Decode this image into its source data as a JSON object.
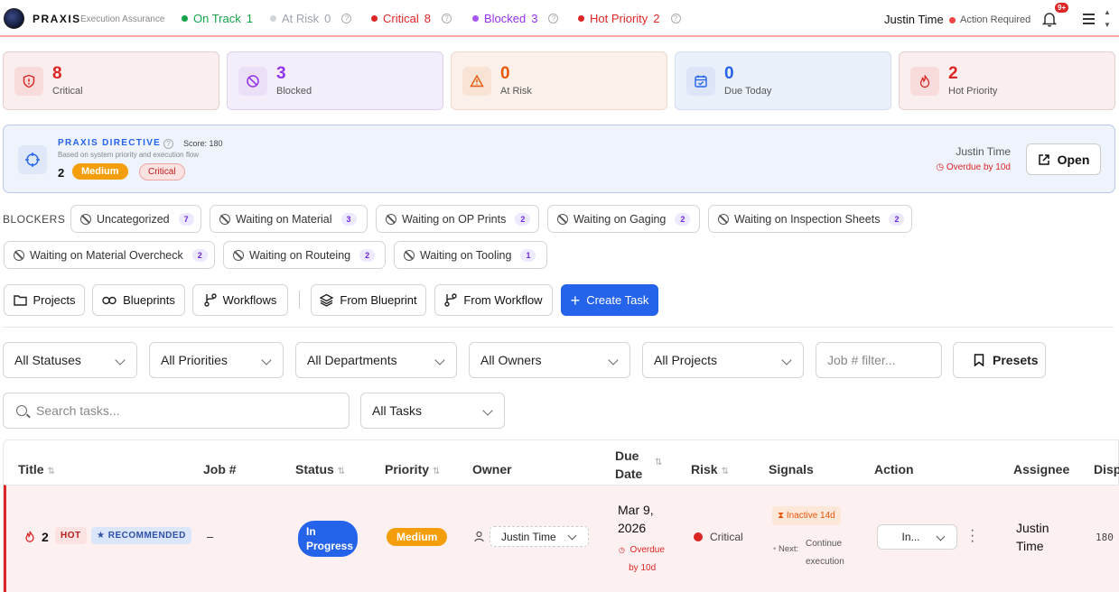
{
  "header": {
    "brand": "PRAXIS",
    "brand_sub": "Execution Assurance",
    "stats": [
      {
        "label": "On Track",
        "count": "1",
        "color": "#16a34a"
      },
      {
        "label": "At Risk",
        "count": "0",
        "color": "#9ca3af"
      },
      {
        "label": "Critical",
        "count": "8",
        "color": "#dc2626"
      },
      {
        "label": "Blocked",
        "count": "3",
        "color": "#9333ea"
      },
      {
        "label": "Hot Priority",
        "count": "2",
        "color": "#dc2626"
      }
    ],
    "user": "Justin Time",
    "action_required": "Action Required",
    "notifications": "9+"
  },
  "cards": [
    {
      "value": "8",
      "label": "Critical",
      "color": "#dc2626",
      "icon": "shield-alert-icon"
    },
    {
      "value": "3",
      "label": "Blocked",
      "color": "#9333ea",
      "icon": "ban-icon"
    },
    {
      "value": "0",
      "label": "At Risk",
      "color": "#ea580c",
      "icon": "warning-icon"
    },
    {
      "value": "0",
      "label": "Due Today",
      "color": "#2563eb",
      "icon": "calendar-check-icon"
    },
    {
      "value": "2",
      "label": "Hot Priority",
      "color": "#dc2626",
      "icon": "flame-icon"
    }
  ],
  "directive": {
    "title": "PRAXIS DIRECTIVE",
    "score": "Score: 180",
    "subtitle": "Based on system priority and execution flow",
    "number": "2",
    "priority": "Medium",
    "risk": "Critical",
    "user": "Justin Time",
    "overdue": "Overdue by 10d",
    "open_label": "Open"
  },
  "blockers": {
    "label": "BLOCKERS",
    "items": [
      {
        "label": "Uncategorized",
        "count": "7"
      },
      {
        "label": "Waiting on Material",
        "count": "3"
      },
      {
        "label": "Waiting on OP Prints",
        "count": "2"
      },
      {
        "label": "Waiting on Gaging",
        "count": "2"
      },
      {
        "label": "Waiting on Inspection Sheets",
        "count": "2"
      },
      {
        "label": "Waiting on Material Overcheck",
        "count": "2"
      },
      {
        "label": "Waiting on Routeing",
        "count": "2"
      },
      {
        "label": "Waiting on Tooling",
        "count": "1"
      }
    ]
  },
  "toolbar": {
    "projects": "Projects",
    "blueprints": "Blueprints",
    "workflows": "Workflows",
    "from_blueprint": "From Blueprint",
    "from_workflow": "From Workflow",
    "create_task": "Create Task"
  },
  "filters": {
    "statuses": "All Statuses",
    "priorities": "All Priorities",
    "departments": "All Departments",
    "owners": "All Owners",
    "projects": "All Projects",
    "job_placeholder": "Job # filter...",
    "presets": "Presets",
    "search_placeholder": "Search tasks...",
    "tasks": "All Tasks"
  },
  "table": {
    "headers": {
      "title": "Title",
      "job": "Job #",
      "status": "Status",
      "priority": "Priority",
      "owner": "Owner",
      "due": "Due",
      "due2": "Date",
      "risk": "Risk",
      "signals": "Signals",
      "action": "Action",
      "assignee": "Assignee",
      "disp": "Disp"
    },
    "rows": [
      {
        "number": "2",
        "hot": "HOT",
        "recommended": "★ RECOMMENDED",
        "job": "–",
        "status_line1": "In",
        "status_line2": "Progress",
        "priority": "Medium",
        "owner": "Justin Time",
        "due_line1": "Mar 9,",
        "due_line2": "2026",
        "overdue_line1": "Overdue",
        "overdue_line2": "by 10d",
        "risk": "Critical",
        "signal": "Inactive 14d",
        "next_label": "Next:",
        "next_line1": "Continue",
        "next_line2": "execution",
        "action": "In...",
        "assignee_line1": "Justin",
        "assignee_line2": "Time",
        "disp": "180"
      }
    ]
  }
}
